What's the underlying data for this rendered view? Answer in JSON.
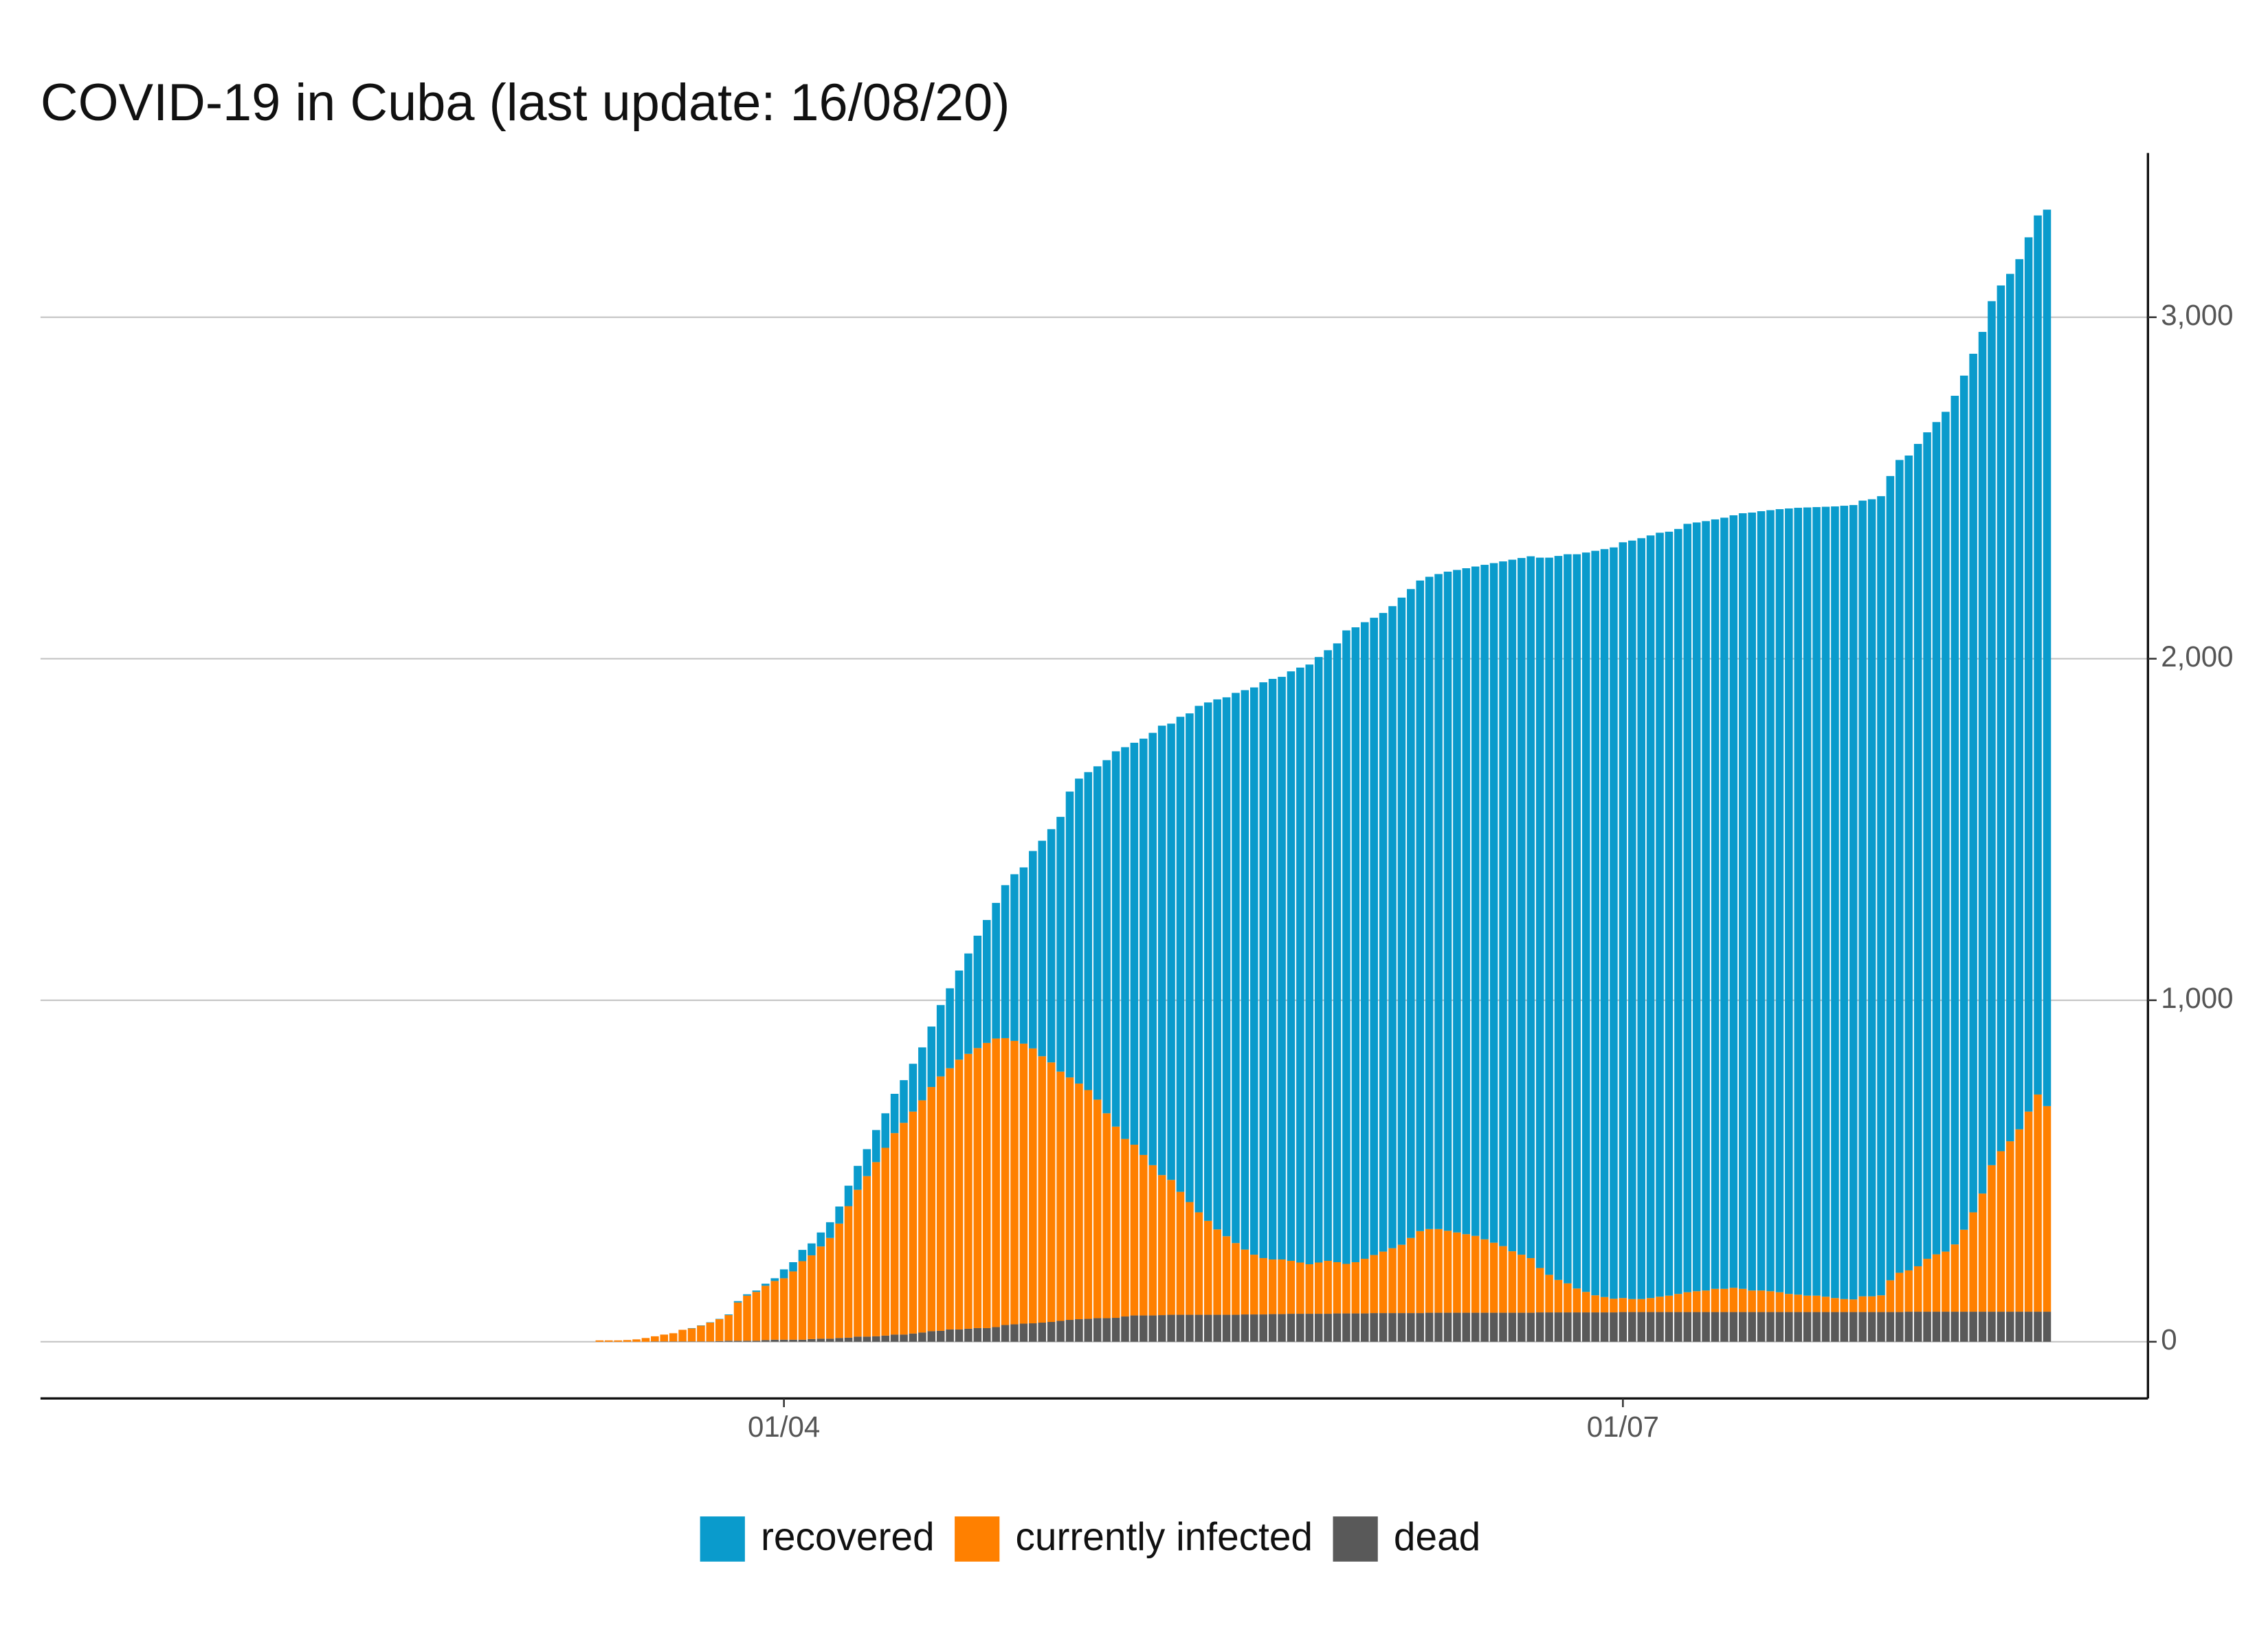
{
  "chart_data": {
    "type": "stacked_bar",
    "title": "COVID-19 in Cuba (last update: 16/08/20)",
    "categories": [
      null,
      null,
      null,
      null,
      null,
      null,
      null,
      null,
      null,
      null,
      null,
      null,
      null,
      null,
      null,
      null,
      null,
      null,
      null,
      null,
      "01/04",
      null,
      null,
      null,
      null,
      null,
      null,
      null,
      null,
      null,
      null,
      null,
      null,
      null,
      null,
      null,
      null,
      null,
      null,
      null,
      null,
      null,
      null,
      null,
      null,
      null,
      null,
      null,
      null,
      null,
      null,
      null,
      null,
      null,
      null,
      null,
      null,
      null,
      null,
      null,
      null,
      null,
      null,
      null,
      null,
      null,
      null,
      null,
      null,
      null,
      null,
      null,
      null,
      null,
      null,
      null,
      null,
      null,
      null,
      null,
      null,
      null,
      null,
      null,
      null,
      null,
      null,
      null,
      null,
      null,
      null,
      null,
      null,
      null,
      null,
      null,
      null,
      null,
      null,
      null,
      null,
      null,
      null,
      null,
      null,
      null,
      null,
      null,
      null,
      null,
      null,
      "01/07",
      null,
      null,
      null,
      null,
      null,
      null,
      null,
      null,
      null,
      null,
      null,
      null,
      null,
      null,
      null,
      null,
      null,
      null,
      null,
      null,
      null,
      null,
      null,
      null,
      null,
      null,
      null,
      null,
      null,
      null,
      null,
      null,
      null,
      null,
      null,
      null,
      null,
      null,
      null,
      null,
      null,
      null,
      null,
      null,
      null,
      null
    ],
    "series": [
      {
        "name": "recovered",
        "color": "#0a9bcc",
        "values": [
          0,
          0,
          0,
          0,
          0,
          0,
          0,
          0,
          0,
          0,
          1,
          1,
          1,
          1,
          2,
          4,
          4,
          4,
          6,
          8,
          26,
          27,
          33,
          35,
          41,
          46,
          50,
          60,
          70,
          79,
          94,
          101,
          115,
          125,
          140,
          155,
          177,
          209,
          234,
          261,
          294,
          329,
          360,
          397,
          448,
          488,
          516,
          578,
          631,
          683,
          746,
          837,
          893,
          931,
          976,
          1034,
          1099,
          1147,
          1177,
          1219,
          1266,
          1316,
          1336,
          1391,
          1431,
          1483,
          1518,
          1552,
          1578,
          1611,
          1638,
          1661,
          1686,
          1700,
          1706,
          1726,
          1742,
          1756,
          1773,
          1788,
          1812,
          1855,
          1859,
          1864,
          1866,
          1870,
          1880,
          1895,
          1900,
          1905,
          1910,
          1918,
          1930,
          1940,
          1950,
          1960,
          1975,
          1990,
          2005,
          2025,
          2040,
          2055,
          2080,
          2100,
          2120,
          2135,
          2150,
          2165,
          2180,
          2190,
          2200,
          2213,
          2221,
          2228,
          2233,
          2237,
          2237,
          2240,
          2250,
          2251,
          2253,
          2253,
          2258,
          2262,
          2271,
          2278,
          2282,
          2287,
          2293,
          2300,
          2304,
          2308,
          2309,
          2313,
          2318,
          2323,
          2326,
          2330,
          2334,
          2340,
          2355,
          2380,
          2386,
          2408,
          2420,
          2437,
          2459,
          2485,
          2501,
          2514,
          2523,
          2530,
          2535,
          2540,
          2548,
          2560,
          2574,
          2625
        ]
      },
      {
        "name": "currently infected",
        "color": "#ff8000",
        "values": [
          4,
          4,
          4,
          5,
          7,
          11,
          15,
          20,
          24,
          34,
          38,
          46,
          55,
          64,
          75,
          112,
          132,
          143,
          159,
          172,
          180,
          200,
          230,
          245,
          270,
          295,
          335,
          385,
          430,
          470,
          510,
          550,
          590,
          620,
          650,
          680,
          715,
          745,
          765,
          790,
          805,
          820,
          835,
          845,
          840,
          830,
          820,
          805,
          780,
          760,
          730,
          710,
          690,
          670,
          640,
          600,
          560,
          520,
          500,
          470,
          440,
          410,
          395,
          360,
          330,
          300,
          275,
          250,
          230,
          210,
          190,
          175,
          165,
          160,
          160,
          155,
          150,
          145,
          150,
          155,
          150,
          145,
          150,
          160,
          170,
          180,
          190,
          200,
          220,
          240,
          245,
          245,
          240,
          235,
          230,
          225,
          215,
          205,
          195,
          180,
          170,
          160,
          130,
          110,
          95,
          85,
          70,
          60,
          50,
          45,
          40,
          41,
          38,
          38,
          41,
          45,
          48,
          53,
          58,
          61,
          63,
          68,
          68,
          71,
          68,
          63,
          63,
          61,
          58,
          53,
          51,
          48,
          48,
          45,
          41,
          38,
          37,
          46,
          46,
          49,
          93,
          115,
          121,
          133,
          155,
          168,
          176,
          197,
          240,
          291,
          346,
          429,
          470,
          499,
          534,
          586,
          636,
          602
        ]
      },
      {
        "name": "dead",
        "color": "#595959",
        "values": [
          0,
          0,
          0,
          0,
          0,
          0,
          1,
          1,
          1,
          1,
          1,
          1,
          1,
          2,
          3,
          3,
          3,
          3,
          5,
          6,
          6,
          6,
          6,
          8,
          9,
          9,
          11,
          12,
          15,
          15,
          16,
          18,
          21,
          21,
          24,
          27,
          31,
          32,
          36,
          36,
          38,
          40,
          40,
          43,
          49,
          51,
          53,
          54,
          56,
          58,
          61,
          64,
          66,
          67,
          69,
          69,
          70,
          74,
          77,
          77,
          77,
          78,
          79,
          79,
          79,
          79,
          79,
          79,
          79,
          79,
          80,
          80,
          80,
          81,
          81,
          82,
          82,
          82,
          82,
          82,
          83,
          83,
          83,
          83,
          84,
          84,
          84,
          84,
          84,
          84,
          85,
          85,
          85,
          85,
          85,
          85,
          85,
          85,
          85,
          85,
          85,
          85,
          86,
          86,
          86,
          86,
          86,
          86,
          86,
          86,
          86,
          87,
          87,
          87,
          87,
          87,
          87,
          87,
          87,
          87,
          87,
          87,
          87,
          87,
          87,
          87,
          87,
          87,
          87,
          87,
          87,
          87,
          87,
          87,
          87,
          87,
          87,
          87,
          87,
          87,
          87,
          87,
          88,
          88,
          88,
          88,
          88,
          88,
          88,
          88,
          88,
          88,
          88,
          88,
          88,
          88,
          88,
          88
        ]
      }
    ],
    "ylim": [
      -166,
      3481
    ],
    "yticks": [
      0,
      {
        "value": 1000,
        "label": "1,000"
      },
      {
        "value": 2000,
        "label": "2,000"
      },
      {
        "value": 3000,
        "label": "3,000"
      }
    ],
    "grid": true
  }
}
